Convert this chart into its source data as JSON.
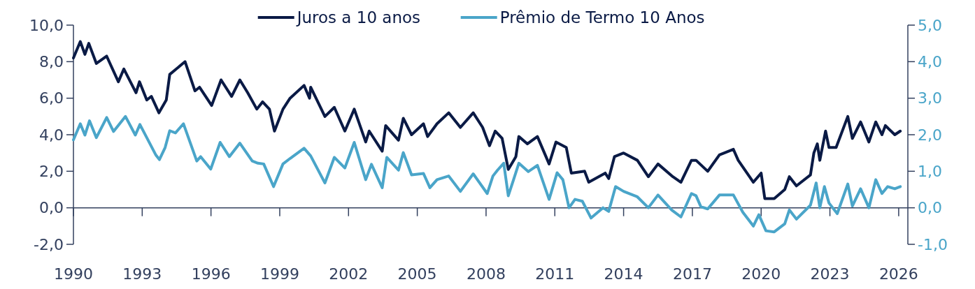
{
  "chart_data": {
    "type": "line",
    "legend": "top",
    "line_style": "solid",
    "marker": "none",
    "grid": false,
    "xlim": [
      1990,
      2026.4
    ],
    "xticks": [
      1990,
      1993,
      1996,
      1999,
      2002,
      2005,
      2008,
      2011,
      2014,
      2017,
      2020,
      2023,
      2026
    ],
    "ylim": [
      -2,
      10
    ],
    "yticks": [
      {
        "value": -2,
        "label": "-2,0"
      },
      {
        "value": 0,
        "label": "0,0"
      },
      {
        "value": 2,
        "label": "2,0"
      },
      {
        "value": 4,
        "label": "4,0"
      },
      {
        "value": 6,
        "label": "6,0"
      },
      {
        "value": 8,
        "label": "8,0"
      },
      {
        "value": 10,
        "label": "10,0"
      }
    ],
    "y2lim": [
      -1,
      5
    ],
    "y2ticks": [
      {
        "value": -1,
        "label": "-1,0"
      },
      {
        "value": 0,
        "label": "0,0"
      },
      {
        "value": 1,
        "label": "1,0"
      },
      {
        "value": 2,
        "label": "2,0"
      },
      {
        "value": 3,
        "label": "3,0"
      },
      {
        "value": 4,
        "label": "4,0"
      },
      {
        "value": 5,
        "label": "5,0"
      }
    ],
    "series": [
      {
        "name": "Juros a 10 anos",
        "color": "#0a1a45",
        "x": [
          1990,
          1990.3,
          1990.5,
          1990.67,
          1991,
          1991.45,
          1991.96,
          1992.2,
          1992.73,
          1992.88,
          1993.2,
          1993.4,
          1993.73,
          1994.05,
          1994.2,
          1994.87,
          1995.3,
          1995.5,
          1996.03,
          1996.44,
          1996.9,
          1997.26,
          1997.6,
          1998,
          1998.25,
          1998.55,
          1998.77,
          1999.14,
          1999.45,
          2000.06,
          2000.3,
          2000.35,
          2000.97,
          2001.38,
          2001.84,
          2002.25,
          2002.75,
          2002.9,
          2003.47,
          2003.62,
          2004.18,
          2004.39,
          2004.75,
          2005.27,
          2005.45,
          2005.86,
          2006.37,
          2006.88,
          2007.44,
          2007.85,
          2008.15,
          2008.4,
          2008.7,
          2008.97,
          2009.3,
          2009.43,
          2009.8,
          2010.24,
          2010.75,
          2011.05,
          2011.5,
          2011.72,
          2012.3,
          2012.48,
          2013.2,
          2013.35,
          2013.6,
          2014,
          2014.6,
          2015.08,
          2015.5,
          2016.15,
          2016.5,
          2016.96,
          2017.16,
          2017.67,
          2018.18,
          2018.79,
          2019,
          2019.66,
          2020,
          2020.16,
          2020.57,
          2021.03,
          2021.23,
          2021.54,
          2022.15,
          2022.3,
          2022.45,
          2022.56,
          2022.81,
          2022.96,
          2023.27,
          2023.78,
          2023.98,
          2024.34,
          2024.7,
          2025,
          2025.27,
          2025.42,
          2025.83,
          2026.07
        ],
        "values": [
          8.2,
          9.1,
          8.4,
          9.0,
          7.9,
          8.3,
          6.9,
          7.6,
          6.3,
          6.9,
          5.9,
          6.1,
          5.2,
          5.9,
          7.3,
          8.0,
          6.4,
          6.6,
          5.6,
          7.0,
          6.1,
          7.0,
          6.3,
          5.4,
          5.8,
          5.4,
          4.2,
          5.4,
          6.0,
          6.7,
          6.0,
          6.6,
          5.0,
          5.5,
          4.2,
          5.4,
          3.6,
          4.2,
          3.1,
          4.5,
          3.7,
          4.9,
          4.0,
          4.6,
          3.9,
          4.6,
          5.2,
          4.4,
          5.2,
          4.4,
          3.4,
          4.2,
          3.8,
          2.1,
          2.8,
          3.9,
          3.5,
          3.9,
          2.4,
          3.6,
          3.3,
          1.9,
          2.0,
          1.4,
          1.9,
          1.6,
          2.8,
          3.0,
          2.6,
          1.7,
          2.4,
          1.7,
          1.4,
          2.6,
          2.6,
          2.0,
          2.9,
          3.2,
          2.6,
          1.4,
          1.9,
          0.5,
          0.5,
          1.0,
          1.7,
          1.2,
          1.8,
          3.0,
          3.5,
          2.6,
          4.2,
          3.3,
          3.3,
          5.0,
          3.8,
          4.7,
          3.6,
          4.7,
          4.0,
          4.5,
          4.0,
          4.2
        ]
      },
      {
        "name": "Prêmio de Termo 10 Anos",
        "color": "#4aa5c9",
        "axis": "y2",
        "x": [
          1990,
          1990.3,
          1990.5,
          1990.7,
          1991,
          1991.45,
          1991.75,
          1992.27,
          1992.7,
          1992.9,
          1993.6,
          1993.75,
          1994,
          1994.2,
          1994.45,
          1994.8,
          1995.38,
          1995.55,
          1995.99,
          1996.4,
          1996.8,
          1997.26,
          1997.8,
          1998.05,
          1998.3,
          1998.73,
          1999.14,
          1999.45,
          2000.06,
          2000.35,
          2000.97,
          2001.38,
          2001.84,
          2002.25,
          2002.75,
          2003,
          2003.47,
          2003.67,
          2004.18,
          2004.39,
          2004.75,
          2005.27,
          2005.55,
          2005.86,
          2006.37,
          2006.88,
          2007.44,
          2008.05,
          2008.3,
          2008.5,
          2008.77,
          2008.97,
          2009.2,
          2009.43,
          2009.84,
          2010.24,
          2010.75,
          2011.1,
          2011.35,
          2011.62,
          2011.88,
          2012.2,
          2012.58,
          2013.1,
          2013.35,
          2013.65,
          2014,
          2014.6,
          2015.08,
          2015.5,
          2016.1,
          2016.5,
          2016.96,
          2017.16,
          2017.37,
          2017.67,
          2018.18,
          2018.79,
          2019.2,
          2019.66,
          2019.9,
          2020.21,
          2020.57,
          2021.03,
          2021.23,
          2021.54,
          2022.15,
          2022.4,
          2022.56,
          2022.76,
          2022.96,
          2023.32,
          2023.78,
          2023.98,
          2024.34,
          2024.7,
          2025,
          2025.27,
          2025.52,
          2025.83,
          2026.07
        ],
        "values": [
          1.86,
          2.3,
          1.99,
          2.38,
          1.92,
          2.47,
          2.09,
          2.5,
          1.99,
          2.28,
          1.44,
          1.32,
          1.65,
          2.11,
          2.05,
          2.3,
          1.28,
          1.4,
          1.06,
          1.79,
          1.4,
          1.77,
          1.28,
          1.22,
          1.2,
          0.58,
          1.2,
          1.35,
          1.63,
          1.42,
          0.68,
          1.38,
          1.09,
          1.79,
          0.77,
          1.19,
          0.55,
          1.38,
          1.03,
          1.51,
          0.9,
          0.94,
          0.55,
          0.77,
          0.87,
          0.45,
          0.93,
          0.39,
          0.87,
          1.03,
          1.22,
          0.33,
          0.77,
          1.22,
          0.99,
          1.16,
          0.23,
          0.96,
          0.77,
          0.0,
          0.23,
          0.18,
          -0.28,
          0.0,
          -0.1,
          0.58,
          0.45,
          0.3,
          0.0,
          0.35,
          -0.06,
          -0.25,
          0.39,
          0.33,
          0.03,
          -0.03,
          0.35,
          0.35,
          -0.12,
          -0.5,
          -0.19,
          -0.63,
          -0.66,
          -0.44,
          -0.06,
          -0.31,
          0.07,
          0.68,
          0.0,
          0.58,
          0.13,
          -0.16,
          0.65,
          0.05,
          0.52,
          0.0,
          0.77,
          0.39,
          0.58,
          0.52,
          0.58
        ]
      }
    ]
  }
}
